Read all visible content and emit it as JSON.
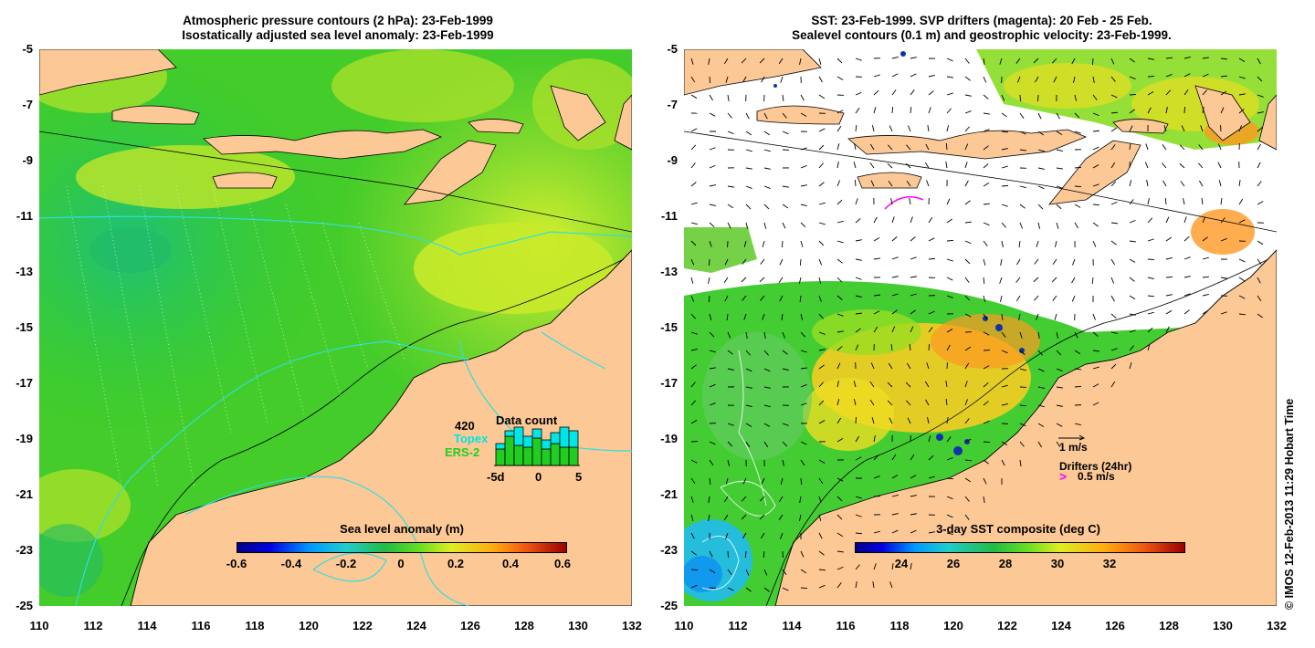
{
  "left_panel": {
    "title_line1": "Atmospheric pressure contours (2 hPa): 23-Feb-1999",
    "title_line2": "Isostatically adjusted sea level anomaly: 23-Feb-1999",
    "y_ticks": [
      "-5",
      "-7",
      "-9",
      "-11",
      "-13",
      "-15",
      "-17",
      "-19",
      "-21",
      "-23",
      "-25"
    ],
    "x_ticks": [
      "110",
      "112",
      "114",
      "116",
      "118",
      "120",
      "122",
      "124",
      "126",
      "128",
      "130",
      "132"
    ],
    "colorbar": {
      "title": "Sea level anomaly (m)",
      "labels": [
        "-0.6",
        "-0.4",
        "-0.2",
        "0",
        "0.2",
        "0.4",
        "0.6"
      ]
    },
    "inset": {
      "count": "420",
      "title": "Data count",
      "topex_label": "Topex",
      "ers_label": "ERS-2",
      "x_labels": [
        "-5d",
        "0",
        "5"
      ],
      "topex_color": "#00e5e5",
      "ers_color": "#22cc22"
    }
  },
  "right_panel": {
    "title_line1": "SST: 23-Feb-1999. SVP drifters (magenta): 20 Feb - 25 Feb.",
    "title_line2": "Sealevel contours (0.1 m) and geostrophic velocity: 23-Feb-1999.",
    "y_ticks": [
      "-5",
      "-7",
      "-9",
      "-11",
      "-13",
      "-15",
      "-17",
      "-19",
      "-21",
      "-23",
      "-25"
    ],
    "x_ticks": [
      "110",
      "112",
      "114",
      "116",
      "118",
      "120",
      "122",
      "124",
      "126",
      "128",
      "130",
      "132"
    ],
    "colorbar": {
      "title": "3-day SST composite (deg C)",
      "labels": [
        "24",
        "26",
        "28",
        "30",
        "32"
      ]
    },
    "legend": {
      "velocity_label": "1 m/s",
      "drifters_label": "Drifters (24hr)",
      "drifter_speed_label": "0.5 m/s",
      "drifter_color": "#ff00ff"
    }
  },
  "credit": "© IMOS 12-Feb-2013 11:29 Hobart Time",
  "colors": {
    "land": "#fcc896",
    "ocean_green": "#33cc33",
    "ocean_yellowgreen": "#99dd22",
    "cyan_contour": "#33dddd"
  }
}
